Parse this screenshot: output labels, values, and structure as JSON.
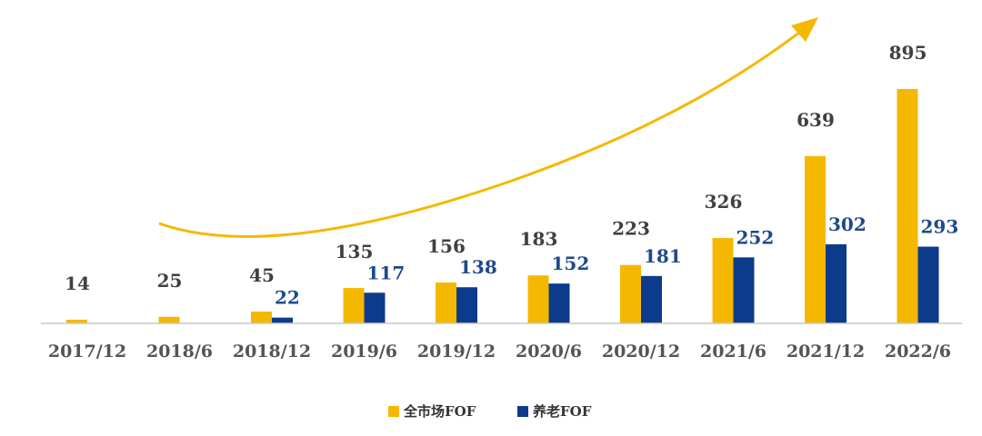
{
  "chart_data": {
    "type": "bar",
    "categories": [
      "2017/12",
      "2018/6",
      "2018/12",
      "2019/6",
      "2019/12",
      "2020/6",
      "2020/12",
      "2021/6",
      "2021/12",
      "2022/6"
    ],
    "series": [
      {
        "name": "全市场FOF",
        "values": [
          14,
          25,
          45,
          135,
          156,
          183,
          223,
          326,
          639,
          895
        ],
        "value_labels": [
          "14",
          "25",
          "45",
          "135",
          "156",
          "183",
          "223",
          "326",
          "639",
          "895"
        ],
        "color": "#F5B800",
        "label_color": "#404040"
      },
      {
        "name": "养老FOF",
        "values": [
          null,
          null,
          22,
          117,
          138,
          152,
          181,
          252,
          302,
          293
        ],
        "value_labels": [
          "",
          "",
          "22",
          "117",
          "138",
          "152",
          "181",
          "252",
          "302",
          "293"
        ],
        "color": "#0D3B8C",
        "label_color": "#1E4A8C"
      }
    ],
    "ylim": [
      0,
      895
    ],
    "legend_position": "bottom-center",
    "grid": false,
    "annotation": {
      "type": "trend-arrow",
      "color": "#F5B800"
    }
  }
}
